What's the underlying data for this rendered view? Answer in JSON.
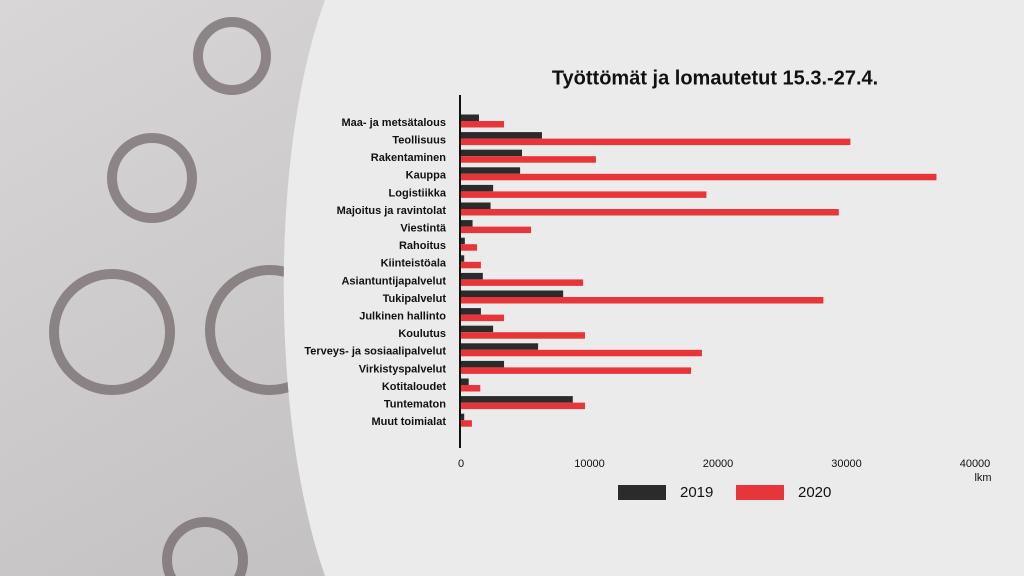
{
  "chart_data": {
    "type": "barh",
    "title": "Työttömät ja lomautetut 15.3.-27.4.",
    "xlabel": "lkm",
    "categories": [
      "Maa- ja metsätalous",
      "Teollisuus",
      "Rakentaminen",
      "Kauppa",
      "Logistiikka",
      "Majoitus ja ravintolat",
      "Viestintä",
      "Rahoitus",
      "Kiinteistöala",
      "Asiantuntijapalvelut",
      "Tukipalvelut",
      "Julkinen hallinto",
      "Koulutus",
      "Terveys- ja sosiaalipalvelut",
      "Virkistyspalvelut",
      "Kotitaloudet",
      "Tuntematon",
      "Muut toimialat"
    ],
    "series": [
      {
        "name": "2019",
        "color": "#2b2b2b",
        "values": [
          1400,
          6300,
          4750,
          4600,
          2500,
          2300,
          900,
          300,
          250,
          1700,
          7950,
          1550,
          2500,
          6000,
          3350,
          600,
          8700,
          250
        ]
      },
      {
        "name": "2020",
        "color": "#e8353a",
        "values": [
          3350,
          30300,
          10500,
          37000,
          19100,
          29400,
          5450,
          1250,
          1550,
          9500,
          28200,
          3350,
          9650,
          18750,
          17900,
          1500,
          9650,
          850
        ]
      }
    ],
    "xlim": [
      0,
      40000
    ],
    "xticks": [
      0,
      10000,
      20000,
      30000,
      40000
    ],
    "legend": "bottom"
  }
}
